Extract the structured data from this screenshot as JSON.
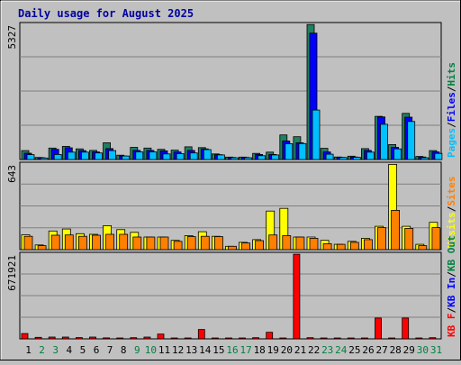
{
  "chart_data": [
    {
      "type": "bar",
      "title": "Daily usage for August 2025",
      "ymax_label": "5327",
      "legend": [
        {
          "text": "Pages",
          "color": "#00c0ff"
        },
        {
          "text": "/",
          "color": "#000000"
        },
        {
          "text": "Files",
          "color": "#0000ff"
        },
        {
          "text": "/",
          "color": "#000000"
        },
        {
          "text": "Hits",
          "color": "#008040"
        }
      ],
      "ylim": [
        0,
        5327
      ],
      "x": [
        1,
        2,
        3,
        4,
        5,
        6,
        7,
        8,
        9,
        10,
        11,
        12,
        13,
        14,
        15,
        16,
        17,
        18,
        19,
        20,
        21,
        22,
        23,
        24,
        25,
        26,
        27,
        28,
        29,
        30,
        31
      ],
      "series": [
        {
          "name": "Hits",
          "color": "#208060",
          "values": [
            350,
            80,
            450,
            520,
            420,
            360,
            660,
            170,
            480,
            450,
            400,
            370,
            500,
            470,
            220,
            95,
            95,
            240,
            290,
            970,
            900,
            5320,
            440,
            100,
            130,
            430,
            1700,
            590,
            1820,
            120,
            350
          ]
        },
        {
          "name": "Files",
          "color": "#0000ff",
          "values": [
            250,
            70,
            400,
            460,
            350,
            300,
            430,
            140,
            360,
            360,
            340,
            300,
            360,
            420,
            190,
            80,
            80,
            200,
            200,
            730,
            660,
            4980,
            300,
            80,
            100,
            360,
            1680,
            480,
            1670,
            100,
            300
          ]
        },
        {
          "name": "Pages",
          "color": "#00c0ff",
          "values": [
            190,
            60,
            200,
            290,
            290,
            260,
            350,
            140,
            300,
            300,
            220,
            230,
            260,
            390,
            180,
            70,
            70,
            150,
            180,
            620,
            630,
            1950,
            210,
            80,
            90,
            290,
            1390,
            420,
            1500,
            70,
            240
          ]
        }
      ]
    },
    {
      "type": "bar",
      "ymax_label": "643",
      "legend": [
        {
          "text": "Visits",
          "color": "#ffff00"
        },
        {
          "text": "/",
          "color": "#000000"
        },
        {
          "text": "Sites",
          "color": "#ff8000"
        }
      ],
      "ylim": [
        0,
        643
      ],
      "x": [
        1,
        2,
        3,
        4,
        5,
        6,
        7,
        8,
        9,
        10,
        11,
        12,
        13,
        14,
        15,
        16,
        17,
        18,
        19,
        20,
        21,
        22,
        23,
        24,
        25,
        26,
        27,
        28,
        29,
        30,
        31
      ],
      "series": [
        {
          "name": "Visits",
          "color": "#ffff00",
          "values": [
            112,
            35,
            140,
            155,
            120,
            115,
            180,
            150,
            130,
            95,
            95,
            70,
            105,
            135,
            100,
            25,
            55,
            75,
            290,
            310,
            95,
            95,
            70,
            40,
            62,
            85,
            175,
            640,
            175,
            40,
            205
          ]
        },
        {
          "name": "Sites",
          "color": "#ff8000",
          "values": [
            100,
            30,
            108,
            110,
            100,
            108,
            115,
            115,
            95,
            95,
            95,
            62,
            98,
            100,
            98,
            25,
            50,
            68,
            110,
            105,
            95,
            85,
            45,
            40,
            55,
            75,
            165,
            295,
            160,
            30,
            165
          ]
        }
      ]
    },
    {
      "type": "bar",
      "ymax_label": "671921",
      "legend": [
        {
          "text": "KB F",
          "color": "#ff0000"
        },
        {
          "text": "/",
          "color": "#000000"
        },
        {
          "text": "KB In",
          "color": "#0000ff"
        },
        {
          "text": "/",
          "color": "#000000"
        },
        {
          "text": "KB Out",
          "color": "#008040"
        }
      ],
      "ylim": [
        0,
        671921
      ],
      "x": [
        1,
        2,
        3,
        4,
        5,
        6,
        7,
        8,
        9,
        10,
        11,
        12,
        13,
        14,
        15,
        16,
        17,
        18,
        19,
        20,
        21,
        22,
        23,
        24,
        25,
        26,
        27,
        28,
        29,
        30,
        31
      ],
      "series": [
        {
          "name": "KB F",
          "color": "#ff0000",
          "values": [
            42000,
            12000,
            14000,
            14000,
            10000,
            14000,
            8000,
            7000,
            9000,
            14000,
            38000,
            7000,
            7000,
            74000,
            7000,
            5000,
            4000,
            9000,
            52000,
            7000,
            671000,
            9000,
            7000,
            7000,
            7000,
            7000,
            165000,
            7000,
            165000,
            7000,
            9000
          ]
        }
      ]
    }
  ],
  "x_axis": {
    "labels": [
      "1",
      "2",
      "3",
      "4",
      "5",
      "6",
      "7",
      "8",
      "9",
      "10",
      "11",
      "12",
      "13",
      "14",
      "15",
      "16",
      "17",
      "18",
      "19",
      "20",
      "21",
      "22",
      "23",
      "24",
      "25",
      "26",
      "27",
      "28",
      "29",
      "30",
      "31"
    ],
    "label_colors": [
      "#000000",
      "#008040",
      "#008040",
      "#000000",
      "#000000",
      "#000000",
      "#000000",
      "#000000",
      "#008040",
      "#008040",
      "#000000",
      "#000000",
      "#000000",
      "#000000",
      "#000000",
      "#008040",
      "#008040",
      "#000000",
      "#000000",
      "#000000",
      "#000000",
      "#000000",
      "#008040",
      "#008040",
      "#000000",
      "#000000",
      "#000000",
      "#000000",
      "#000000",
      "#008040",
      "#008040"
    ]
  }
}
